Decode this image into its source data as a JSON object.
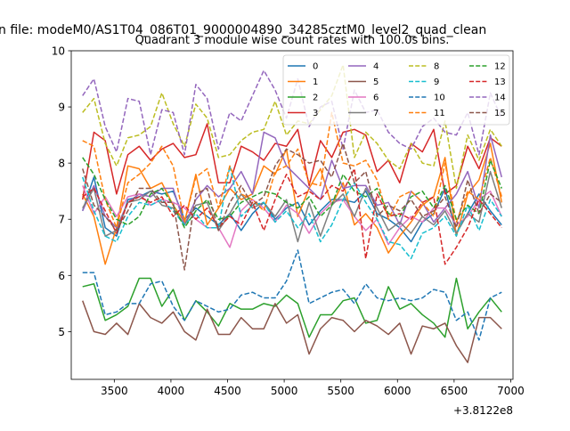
{
  "figure": {
    "suptitle": "n file: modeM0/AS1T04_086T01_9000004890_34285cztM0_level2_quad_clean",
    "background": "#ffffff"
  },
  "chart_data": {
    "type": "line",
    "title": "Quadrant 3 module wise count rates with 100.0s bins.",
    "xlabel": "",
    "ylabel": "",
    "x_offset_label": "+3.8122e8",
    "xlim": [
      3120,
      7020
    ],
    "ylim": [
      4.15,
      10.0
    ],
    "xticks": [
      3500,
      4000,
      4500,
      5000,
      5500,
      6000,
      6500,
      7000
    ],
    "yticks": [
      5,
      6,
      7,
      8,
      9,
      10
    ],
    "legend_location": "upper right",
    "legend_ncol": 4,
    "x": [
      3220,
      3320,
      3420,
      3520,
      3620,
      3720,
      3820,
      3920,
      4020,
      4120,
      4220,
      4320,
      4420,
      4520,
      4620,
      4720,
      4820,
      4920,
      5020,
      5120,
      5220,
      5320,
      5420,
      5520,
      5620,
      5720,
      5820,
      5920,
      6020,
      6120,
      6220,
      6320,
      6420,
      6520,
      6620,
      6720,
      6820,
      6920
    ],
    "series": [
      {
        "name": "0",
        "color": "#1f77b4",
        "dash": "solid",
        "values": [
          7.15,
          7.75,
          6.85,
          6.7,
          7.35,
          7.4,
          7.5,
          7.45,
          7.5,
          7.0,
          7.2,
          7.05,
          6.9,
          7.1,
          6.8,
          7.1,
          7.3,
          7.0,
          7.2,
          7.3,
          6.9,
          7.15,
          7.35,
          7.35,
          7.3,
          7.5,
          7.1,
          7.0,
          6.85,
          6.6,
          6.95,
          7.1,
          7.55,
          6.75,
          7.1,
          7.45,
          7.15,
          6.9
        ]
      },
      {
        "name": "1",
        "color": "#ff7f0e",
        "dash": "solid",
        "values": [
          7.45,
          7.05,
          6.2,
          6.85,
          7.95,
          7.9,
          7.55,
          7.65,
          7.25,
          6.95,
          7.8,
          6.9,
          7.2,
          7.55,
          7.35,
          7.45,
          7.95,
          7.8,
          8.25,
          7.05,
          7.55,
          7.9,
          7.25,
          7.65,
          6.9,
          7.1,
          6.85,
          6.4,
          6.7,
          6.95,
          7.25,
          7.4,
          8.1,
          6.7,
          7.45,
          7.7,
          8.35,
          7.3
        ]
      },
      {
        "name": "2",
        "color": "#2ca02c",
        "dash": "solid",
        "values": [
          5.8,
          5.85,
          5.2,
          5.3,
          5.45,
          5.95,
          5.95,
          5.45,
          5.75,
          5.2,
          5.55,
          5.35,
          5.1,
          5.5,
          5.4,
          5.4,
          5.5,
          5.45,
          5.65,
          5.5,
          4.9,
          5.3,
          5.3,
          5.55,
          5.6,
          5.15,
          5.2,
          5.8,
          5.4,
          5.5,
          5.3,
          5.15,
          4.9,
          5.95,
          5.05,
          5.35,
          5.6,
          5.35
        ]
      },
      {
        "name": "3",
        "color": "#d62728",
        "dash": "solid",
        "values": [
          7.35,
          8.55,
          8.4,
          7.45,
          8.15,
          8.3,
          8.05,
          8.25,
          8.35,
          8.1,
          8.15,
          8.7,
          7.65,
          7.65,
          8.3,
          8.2,
          8.05,
          8.35,
          8.3,
          8.6,
          7.6,
          8.4,
          8.1,
          8.55,
          8.6,
          8.5,
          7.85,
          8.05,
          7.65,
          8.35,
          8.2,
          8.6,
          7.45,
          7.6,
          8.3,
          7.9,
          8.45,
          8.3
        ]
      },
      {
        "name": "4",
        "color": "#9467bd",
        "dash": "solid",
        "values": [
          7.15,
          7.6,
          7.05,
          6.85,
          7.3,
          7.45,
          7.4,
          7.55,
          7.55,
          6.9,
          7.35,
          7.6,
          7.4,
          7.55,
          7.85,
          7.45,
          8.55,
          8.45,
          7.95,
          7.75,
          7.55,
          7.35,
          8.05,
          7.55,
          7.6,
          7.6,
          7.25,
          7.3,
          6.9,
          7.5,
          7.3,
          6.95,
          7.2,
          7.45,
          7.85,
          7.2,
          8.5,
          7.75
        ]
      },
      {
        "name": "5",
        "color": "#8c564b",
        "dash": "solid",
        "values": [
          5.55,
          5.0,
          4.95,
          5.15,
          4.95,
          5.5,
          5.25,
          5.15,
          5.35,
          5.0,
          4.85,
          5.4,
          4.95,
          4.95,
          5.25,
          5.05,
          5.05,
          5.5,
          5.15,
          5.3,
          4.6,
          5.05,
          5.25,
          5.2,
          5.0,
          5.2,
          5.1,
          4.95,
          5.15,
          4.6,
          5.1,
          5.05,
          5.15,
          4.75,
          4.45,
          5.25,
          5.25,
          5.05
        ]
      },
      {
        "name": "6",
        "color": "#e377c2",
        "dash": "solid",
        "values": [
          7.6,
          7.1,
          7.4,
          7.05,
          7.4,
          7.45,
          7.25,
          7.35,
          7.3,
          7.2,
          7.0,
          6.85,
          6.85,
          6.5,
          7.15,
          7.35,
          7.2,
          6.95,
          7.25,
          7.1,
          6.75,
          7.1,
          7.3,
          7.35,
          7.05,
          6.8,
          7.0,
          6.55,
          6.85,
          7.05,
          6.95,
          7.2,
          7.2,
          6.9,
          7.05,
          7.35,
          7.5,
          7.05
        ]
      },
      {
        "name": "7",
        "color": "#7f7f7f",
        "dash": "solid",
        "values": [
          7.2,
          7.55,
          6.7,
          6.8,
          7.3,
          7.35,
          7.5,
          7.25,
          7.2,
          6.9,
          7.25,
          7.3,
          6.8,
          7.1,
          7.45,
          7.2,
          7.3,
          7.05,
          7.35,
          6.6,
          7.3,
          6.7,
          7.25,
          7.45,
          7.05,
          7.55,
          7.2,
          6.8,
          6.95,
          6.75,
          7.05,
          6.9,
          7.15,
          6.75,
          7.1,
          6.95,
          7.85,
          7.2
        ]
      },
      {
        "name": "8",
        "color": "#bcbd22",
        "dash": "dashed",
        "values": [
          8.9,
          9.15,
          8.35,
          7.95,
          8.45,
          8.5,
          8.65,
          9.25,
          8.7,
          8.3,
          9.05,
          8.8,
          8.1,
          8.15,
          8.4,
          8.55,
          8.6,
          9.1,
          8.5,
          8.75,
          8.7,
          8.95,
          9.2,
          9.75,
          8.1,
          8.55,
          8.35,
          8.05,
          7.9,
          8.35,
          8.0,
          7.95,
          8.75,
          7.55,
          8.5,
          8.05,
          8.6,
          8.3
        ]
      },
      {
        "name": "9",
        "color": "#17becf",
        "dash": "dashed",
        "values": [
          7.75,
          7.15,
          6.7,
          6.6,
          7.05,
          7.3,
          7.25,
          7.35,
          7.15,
          6.9,
          7.1,
          6.85,
          6.85,
          7.95,
          7.05,
          7.25,
          7.3,
          6.95,
          7.15,
          6.85,
          7.1,
          6.6,
          6.9,
          7.35,
          7.65,
          7.3,
          7.0,
          6.6,
          6.55,
          6.3,
          6.75,
          6.85,
          7.05,
          6.7,
          7.25,
          6.8,
          7.35,
          7.05
        ]
      },
      {
        "name": "10",
        "color": "#1f77b4",
        "dash": "dashed",
        "values": [
          6.05,
          6.05,
          5.3,
          5.35,
          5.5,
          5.5,
          5.85,
          5.9,
          5.45,
          5.2,
          5.55,
          5.45,
          5.35,
          5.4,
          5.65,
          5.7,
          5.6,
          5.6,
          5.9,
          6.45,
          5.5,
          5.6,
          5.7,
          5.75,
          5.5,
          5.85,
          5.6,
          5.55,
          5.6,
          5.55,
          5.6,
          5.75,
          5.7,
          5.2,
          5.35,
          4.85,
          5.6,
          5.7
        ]
      },
      {
        "name": "11",
        "color": "#ff7f0e",
        "dash": "dashed",
        "values": [
          8.4,
          8.3,
          7.35,
          6.85,
          7.65,
          7.8,
          8.0,
          8.3,
          7.95,
          6.95,
          7.75,
          7.9,
          7.2,
          7.95,
          7.45,
          7.35,
          7.15,
          7.85,
          7.95,
          8.25,
          7.65,
          7.6,
          8.9,
          8.0,
          7.95,
          8.05,
          7.7,
          7.0,
          7.4,
          7.5,
          7.3,
          7.05,
          8.0,
          6.95,
          7.5,
          7.35,
          8.1,
          7.4
        ]
      },
      {
        "name": "12",
        "color": "#2ca02c",
        "dash": "dashed",
        "values": [
          8.1,
          7.8,
          7.35,
          7.0,
          6.9,
          7.05,
          7.45,
          7.55,
          7.25,
          6.85,
          7.15,
          7.35,
          7.0,
          7.05,
          7.3,
          7.4,
          7.5,
          7.45,
          7.3,
          7.2,
          7.4,
          7.05,
          7.25,
          7.8,
          7.5,
          7.4,
          7.55,
          7.1,
          7.05,
          7.4,
          7.5,
          7.2,
          7.6,
          7.0,
          7.25,
          7.1,
          8.05,
          7.55
        ]
      },
      {
        "name": "13",
        "color": "#d62728",
        "dash": "dashed",
        "values": [
          7.4,
          7.55,
          7.15,
          6.75,
          7.3,
          7.4,
          7.3,
          7.4,
          7.05,
          7.25,
          7.0,
          7.2,
          6.85,
          7.05,
          6.9,
          7.3,
          6.8,
          7.35,
          7.8,
          7.4,
          7.5,
          7.35,
          7.6,
          7.5,
          7.9,
          6.3,
          7.45,
          7.05,
          7.1,
          7.0,
          7.3,
          7.4,
          6.2,
          6.5,
          6.85,
          7.35,
          7.1,
          6.85
        ]
      },
      {
        "name": "14",
        "color": "#9467bd",
        "dash": "dashed",
        "values": [
          9.2,
          9.5,
          8.65,
          8.2,
          9.15,
          9.1,
          8.15,
          8.95,
          8.9,
          8.15,
          9.4,
          9.15,
          8.25,
          8.9,
          8.75,
          9.2,
          9.65,
          9.3,
          8.8,
          9.5,
          8.65,
          9.0,
          9.1,
          8.25,
          9.3,
          8.9,
          8.95,
          8.55,
          8.35,
          8.25,
          8.65,
          8.8,
          8.55,
          8.5,
          8.9,
          8.15,
          9.25,
          8.8
        ]
      },
      {
        "name": "15",
        "color": "#8c564b",
        "dash": "dashed",
        "values": [
          7.9,
          7.25,
          7.05,
          6.8,
          7.15,
          7.55,
          7.55,
          7.3,
          7.3,
          6.1,
          7.45,
          7.55,
          6.8,
          7.3,
          7.6,
          7.25,
          7.4,
          7.95,
          8.25,
          8.15,
          8.0,
          8.05,
          7.75,
          8.35,
          7.65,
          7.85,
          7.05,
          7.25,
          7.15,
          7.35,
          7.05,
          7.15,
          7.4,
          6.85,
          7.7,
          7.1,
          7.45,
          7.3
        ]
      }
    ]
  }
}
